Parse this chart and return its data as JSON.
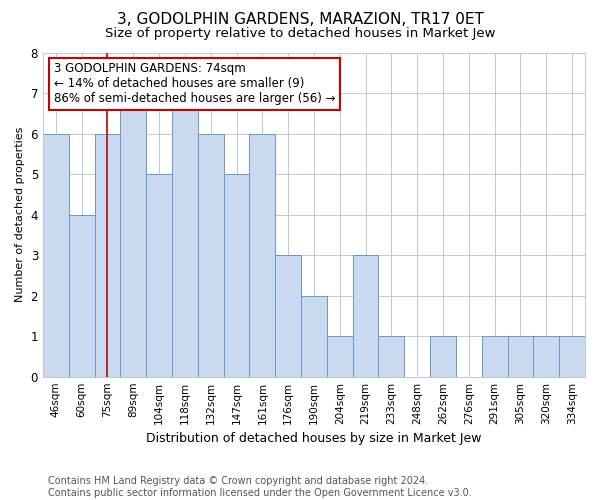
{
  "title": "3, GODOLPHIN GARDENS, MARAZION, TR17 0ET",
  "subtitle": "Size of property relative to detached houses in Market Jew",
  "xlabel": "Distribution of detached houses by size in Market Jew",
  "ylabel": "Number of detached properties",
  "categories": [
    "46sqm",
    "60sqm",
    "75sqm",
    "89sqm",
    "104sqm",
    "118sqm",
    "132sqm",
    "147sqm",
    "161sqm",
    "176sqm",
    "190sqm",
    "204sqm",
    "219sqm",
    "233sqm",
    "248sqm",
    "262sqm",
    "276sqm",
    "291sqm",
    "305sqm",
    "320sqm",
    "334sqm"
  ],
  "values": [
    6,
    4,
    6,
    7,
    5,
    7,
    6,
    5,
    6,
    3,
    2,
    1,
    3,
    1,
    0,
    1,
    0,
    1,
    1,
    1,
    1
  ],
  "bar_color": "#c9d9ef",
  "bar_edge_color": "#6699cc",
  "highlight_index": 2,
  "highlight_line_color": "#cc0000",
  "annotation_line1": "3 GODOLPHIN GARDENS: 74sqm",
  "annotation_line2": "← 14% of detached houses are smaller (9)",
  "annotation_line3": "86% of semi-detached houses are larger (56) →",
  "annotation_box_color": "#ffffff",
  "annotation_box_edge_color": "#cc0000",
  "ylim": [
    0,
    8
  ],
  "yticks": [
    0,
    1,
    2,
    3,
    4,
    5,
    6,
    7,
    8
  ],
  "footer": "Contains HM Land Registry data © Crown copyright and database right 2024.\nContains public sector information licensed under the Open Government Licence v3.0.",
  "background_color": "#ffffff",
  "grid_color": "#c0c8d8",
  "title_fontsize": 11,
  "subtitle_fontsize": 9.5,
  "annotation_fontsize": 8.5,
  "footer_fontsize": 7,
  "xlabel_fontsize": 9,
  "ylabel_fontsize": 8
}
